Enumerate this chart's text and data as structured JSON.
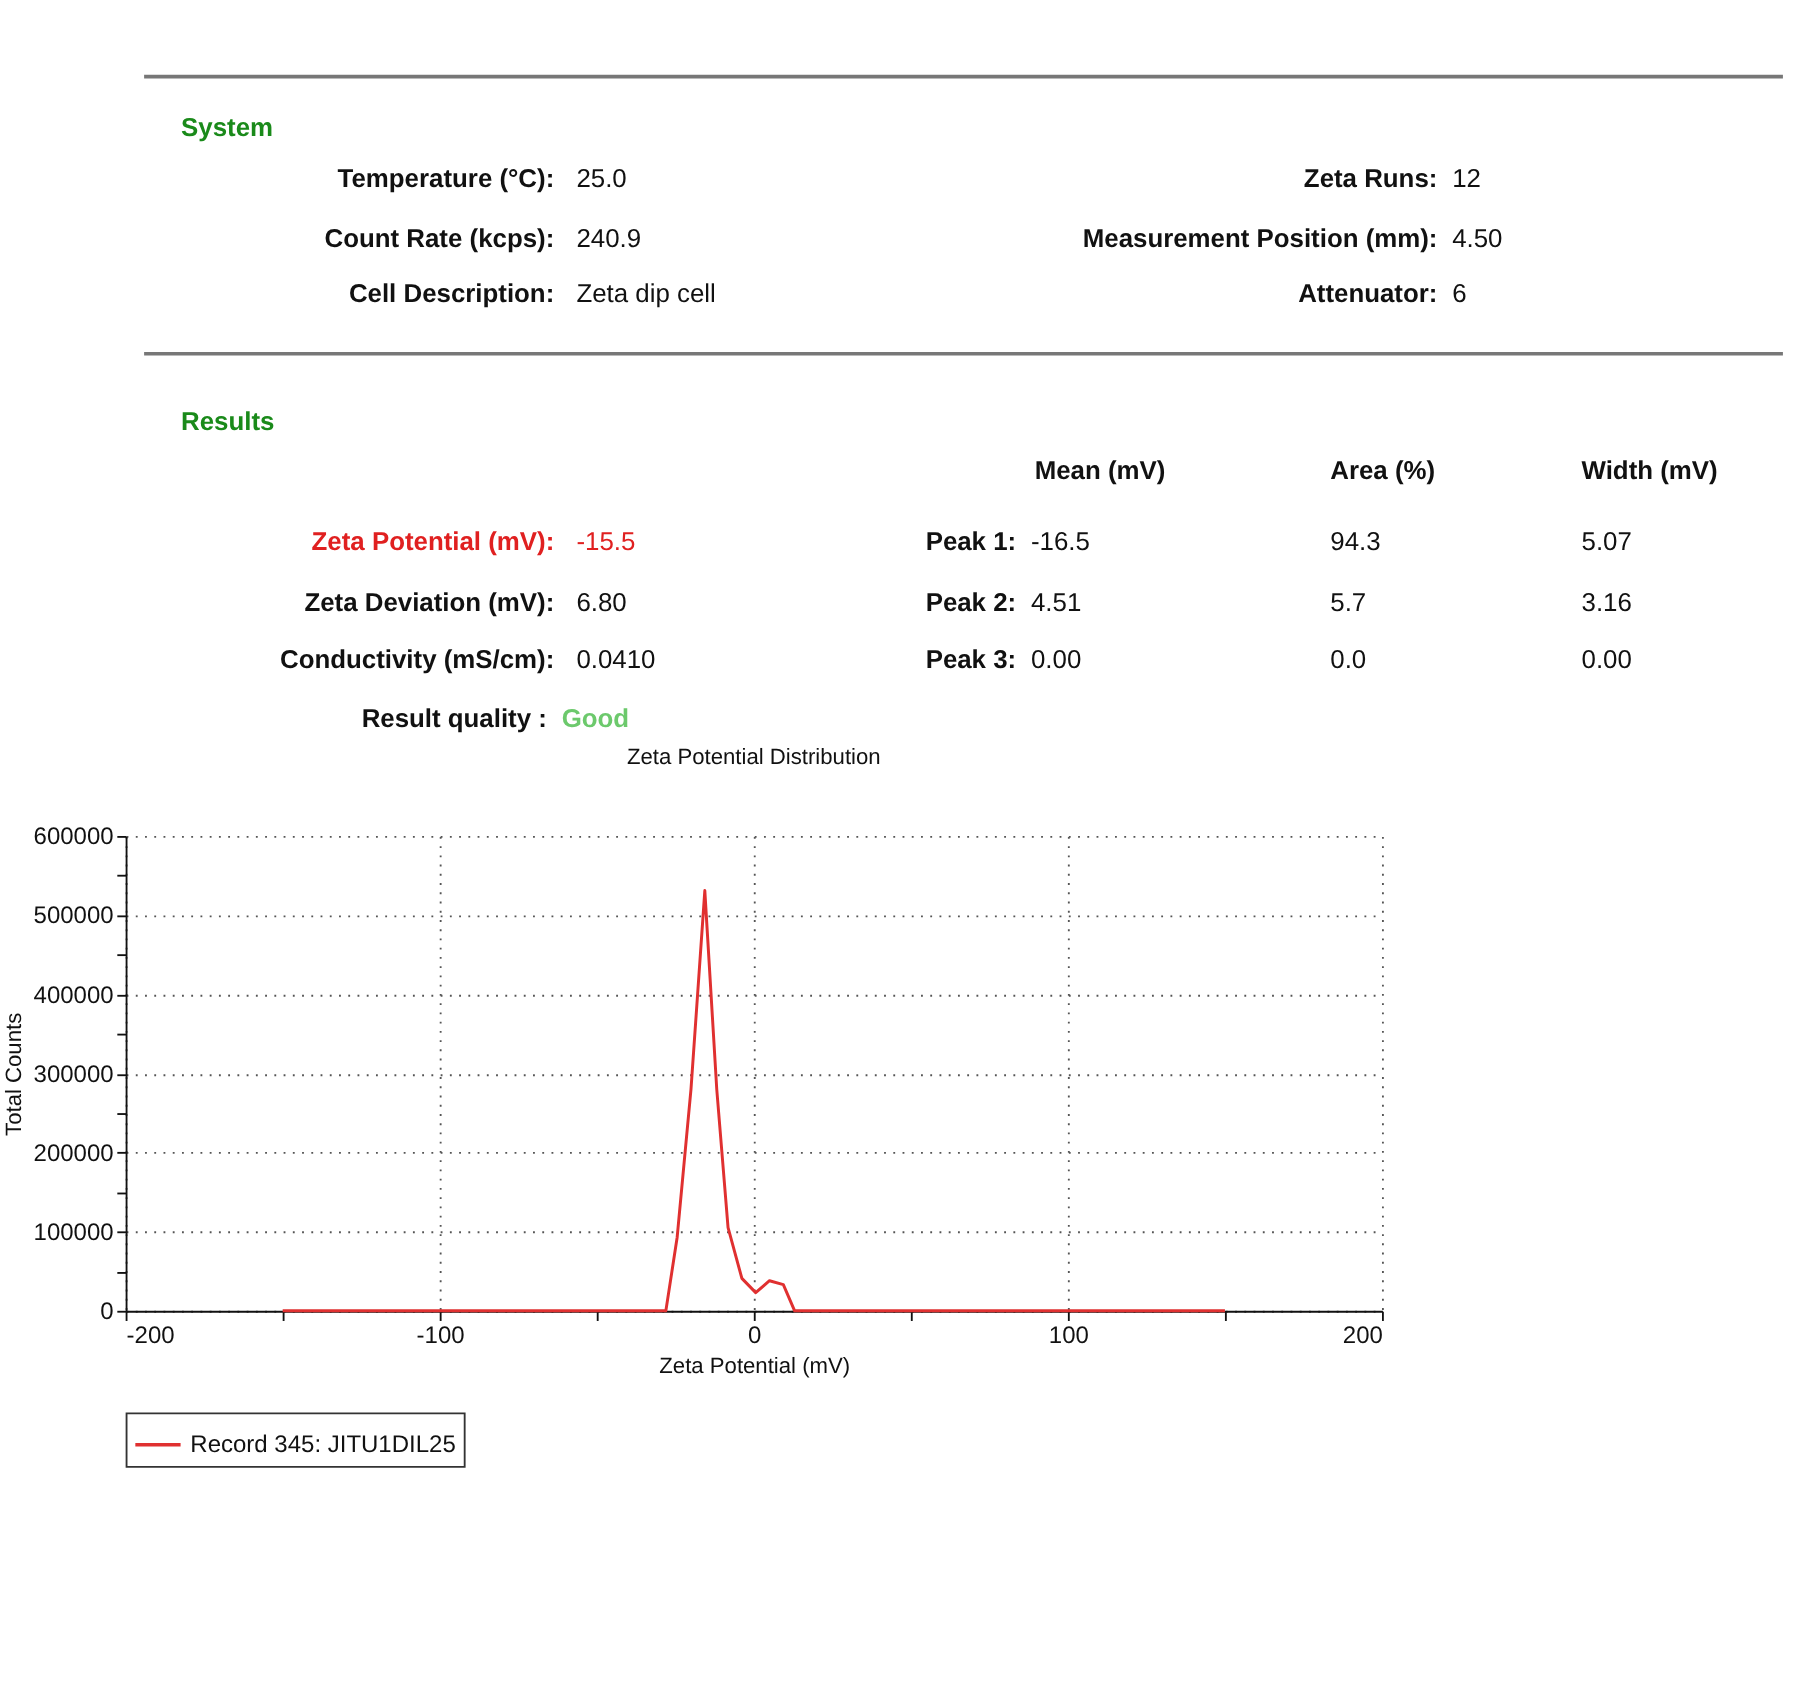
{
  "chart_data": [
    {
      "type": "other",
      "annotations": [
        "System",
        "Temperature (°C):",
        "25.0",
        "Zeta Runs:",
        "12",
        "Count Rate (kcps):",
        "240.9",
        "Measurement Position (mm):",
        "4.50",
        "Cell Description:",
        "Zeta dip cell",
        "Attenuator:",
        "6",
        "Results",
        "Mean (mV)",
        "Area (%)",
        "Width (mV)",
        "Zeta Potential (mV):",
        "-15.5",
        "Peak 1:",
        "-16.5",
        "94.3",
        "5.07",
        "Zeta Deviation (mV):",
        "6.80",
        "Peak 2:",
        "4.51",
        "5.7",
        "3.16",
        "Conductivity (mS/cm):",
        "0.0410",
        "Peak 3:",
        "0.00",
        "0.0",
        "0.00",
        "Result quality :",
        "Good"
      ]
    },
    {
      "type": "line",
      "title": "Zeta Potential Distribution",
      "xlabel": "Zeta Potential (mV)",
      "ylabel": "Total Counts",
      "x": [
        -150,
        -28,
        -24.4,
        -20,
        -15.6,
        -11.8,
        -8.2,
        -3.8,
        0.6,
        5,
        9.4,
        13,
        150
      ],
      "series": [
        {
          "name": "Record 345: JITU1DIL25",
          "color": "#e03030",
          "values": [
            0,
            0,
            93000,
            280000,
            531000,
            280000,
            105000,
            41000,
            23000,
            38000,
            33000,
            0,
            0
          ]
        }
      ],
      "xlim": [
        -200,
        200
      ],
      "xticks": [
        -200,
        {
          "value": -150,
          "label": null
        },
        -100,
        {
          "value": -50,
          "label": null
        },
        0,
        {
          "value": 50,
          "label": null
        },
        100,
        {
          "value": 150,
          "label": null
        },
        200
      ],
      "ylim": [
        0,
        600000
      ],
      "yticks": [
        0,
        {
          "value": 50000,
          "label": null
        },
        100000,
        {
          "value": 150000,
          "label": null
        },
        200000,
        {
          "value": 250000,
          "label": null
        },
        300000,
        {
          "value": 350000,
          "label": null
        },
        400000,
        {
          "value": 450000,
          "label": null
        },
        500000,
        {
          "value": 550000,
          "label": null
        },
        600000
      ],
      "grid": true,
      "legend": "bottom",
      "marker": "none",
      "line_style": "solid"
    }
  ]
}
